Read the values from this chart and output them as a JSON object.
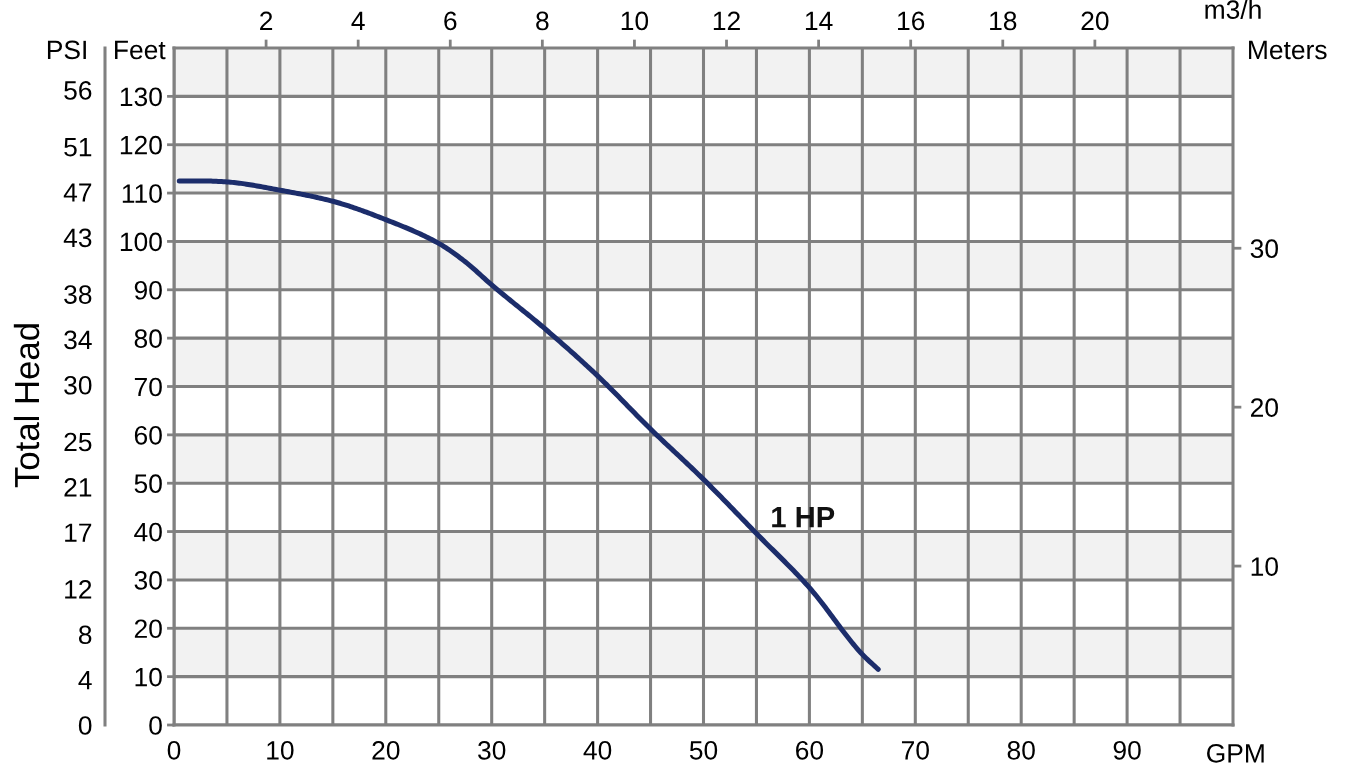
{
  "chart_data": {
    "type": "line",
    "xlabel": "GPM",
    "x2label": "m3/h",
    "ylabel": "Feet",
    "y2label": "Meters",
    "y3label": "PSI",
    "annotations": [
      "Total Head"
    ],
    "xlim": [
      0,
      100
    ],
    "xticks": [
      0,
      {
        "value": 5,
        "label": null
      },
      10,
      {
        "value": 15,
        "label": null
      },
      20,
      {
        "value": 25,
        "label": null
      },
      30,
      {
        "value": 35,
        "label": null
      },
      40,
      {
        "value": 45,
        "label": null
      },
      50,
      {
        "value": 55,
        "label": null
      },
      60,
      {
        "value": 65,
        "label": null
      },
      70,
      {
        "value": 75,
        "label": null
      },
      80,
      {
        "value": 85,
        "label": null
      },
      90,
      {
        "value": 95,
        "label": null
      }
    ],
    "x2lim": [
      0,
      23.0
    ],
    "x2ticks": [
      2,
      4,
      6,
      8,
      10,
      12,
      14,
      16,
      18,
      20
    ],
    "ylim": [
      0,
      140
    ],
    "yticks": [
      0,
      10,
      20,
      30,
      40,
      50,
      60,
      70,
      80,
      90,
      100,
      110,
      120,
      130
    ],
    "y2lim": [
      0,
      42.6
    ],
    "y2ticks": [
      10,
      20,
      30
    ],
    "y3lim": [
      0,
      59.7
    ],
    "y3ticks": [
      0,
      4,
      8,
      12,
      17,
      21,
      25,
      30,
      34,
      38,
      43,
      47,
      51,
      56
    ],
    "grid": true,
    "bands": [
      {
        "axis": "y",
        "from": 10,
        "to": 20,
        "color": "#f2f2f2"
      },
      {
        "axis": "y",
        "from": 30,
        "to": 40,
        "color": "#f2f2f2"
      },
      {
        "axis": "y",
        "from": 50,
        "to": 60,
        "color": "#f2f2f2"
      },
      {
        "axis": "y",
        "from": 70,
        "to": 80,
        "color": "#f2f2f2"
      },
      {
        "axis": "y",
        "from": 90,
        "to": 100,
        "color": "#f2f2f2"
      },
      {
        "axis": "y",
        "from": 110,
        "to": 120,
        "color": "#f2f2f2"
      },
      {
        "axis": "y",
        "from": 130,
        "to": 140,
        "color": "#f2f2f2"
      }
    ],
    "x": [
      0.5,
      3,
      5,
      10,
      15,
      20,
      25,
      27.5,
      30,
      35,
      40,
      45,
      50,
      55,
      60,
      65,
      66.5
    ],
    "series": [
      {
        "name": "1 HP",
        "color": "#1c2d6b",
        "values": [
          112.5,
          112.5,
          112.3,
          110.6,
          108.3,
          104.5,
          99.6,
          95.8,
          91.0,
          82.0,
          72.2,
          61.2,
          50.8,
          39.6,
          28.4,
          14.6,
          11.5
        ]
      }
    ]
  }
}
